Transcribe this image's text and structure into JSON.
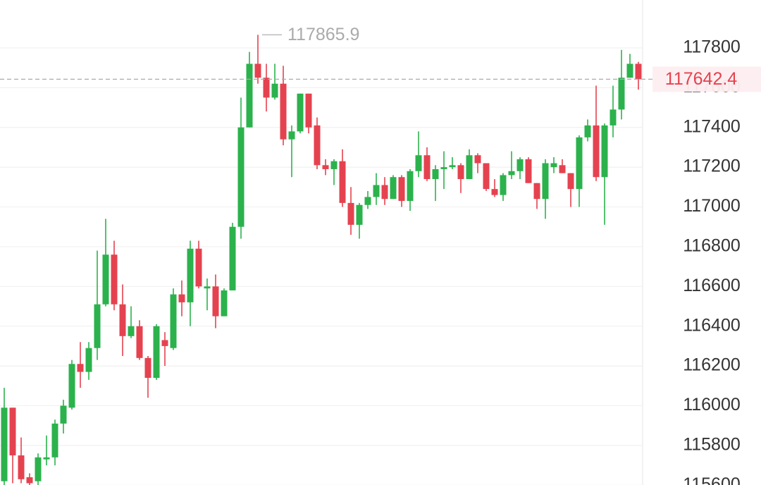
{
  "chart_data": {
    "type": "candlestick",
    "up_color": "#2bb24c",
    "down_color": "#e5424f",
    "ylim": [
      115601,
      118041
    ],
    "yticks": [
      115600,
      115800,
      116000,
      116200,
      116400,
      116600,
      116800,
      117000,
      117200,
      117400,
      117600,
      117800
    ],
    "grid": true,
    "open": [
      115620,
      115990,
      115750,
      115640,
      115620,
      115730,
      115740,
      115910,
      115990,
      116210,
      116170,
      116290,
      116510,
      116760,
      116510,
      116350,
      116400,
      116240,
      116140,
      116330,
      116290,
      116560,
      116520,
      116790,
      116590,
      116600,
      116450,
      116580,
      116900,
      117400,
      117720,
      117650,
      117550,
      117620,
      117340,
      117380,
      117570,
      117410,
      117210,
      117190,
      117230,
      117020,
      116910,
      117010,
      117050,
      117110,
      117040,
      117150,
      117030,
      117180,
      117260,
      117140,
      117190,
      117200,
      117210,
      117140,
      117260,
      117220,
      117090,
      117060,
      117160,
      117180,
      117240,
      117120,
      117040,
      117200,
      117210,
      117170,
      117090,
      117350,
      117410,
      117150,
      117410,
      117490,
      117650,
      117720
    ],
    "high": [
      116090,
      115990,
      115840,
      115660,
      115760,
      115850,
      115930,
      116030,
      116230,
      116320,
      116320,
      116780,
      116940,
      116830,
      116610,
      116500,
      116430,
      116250,
      116410,
      116370,
      116590,
      116630,
      116830,
      116830,
      116640,
      116660,
      116590,
      116920,
      117550,
      117780,
      117865.9,
      117720,
      117720,
      117710,
      117410,
      117570,
      117570,
      117450,
      117240,
      117240,
      117290,
      117100,
      117020,
      117080,
      117170,
      117150,
      117160,
      117160,
      117190,
      117380,
      117300,
      117210,
      117280,
      117250,
      117220,
      117290,
      117270,
      117220,
      117140,
      117170,
      117280,
      117250,
      117250,
      117120,
      117240,
      117250,
      117240,
      117170,
      117360,
      117440,
      117610,
      117420,
      117610,
      117790,
      117770,
      117730
    ],
    "low": [
      115600,
      115610,
      115610,
      115600,
      115600,
      115700,
      115700,
      115860,
      115980,
      116090,
      116130,
      116230,
      116500,
      116480,
      116250,
      116340,
      116230,
      116040,
      116130,
      116200,
      116280,
      116450,
      116400,
      116590,
      116480,
      116390,
      116450,
      116580,
      116840,
      117400,
      117620,
      117480,
      117540,
      117310,
      117150,
      117370,
      117370,
      117190,
      117160,
      117110,
      117000,
      116860,
      116840,
      116990,
      117010,
      117010,
      117040,
      117000,
      116980,
      117150,
      117130,
      117030,
      117090,
      117190,
      117070,
      117140,
      117170,
      117080,
      117050,
      117030,
      117140,
      117140,
      117120,
      116990,
      116940,
      117170,
      117170,
      117000,
      117000,
      117330,
      117130,
      116910,
      117350,
      117440,
      117650,
      117590
    ],
    "close": [
      115990,
      115750,
      115630,
      115610,
      115740,
      115740,
      115910,
      116000,
      116210,
      116170,
      116290,
      116510,
      116760,
      116510,
      116350,
      116400,
      116240,
      116140,
      116400,
      116300,
      116560,
      116520,
      116790,
      116600,
      116600,
      116450,
      116580,
      116900,
      117400,
      117720,
      117650,
      117550,
      117620,
      117340,
      117380,
      117570,
      117400,
      117210,
      117190,
      117230,
      117020,
      116910,
      117010,
      117050,
      117110,
      117040,
      117150,
      117030,
      117180,
      117260,
      117140,
      117190,
      117200,
      117210,
      117140,
      117260,
      117220,
      117090,
      117060,
      117160,
      117180,
      117240,
      117120,
      117040,
      117220,
      117220,
      117170,
      117090,
      117350,
      117410,
      117150,
      117410,
      117490,
      117650,
      117720,
      117642.4
    ]
  }
}
